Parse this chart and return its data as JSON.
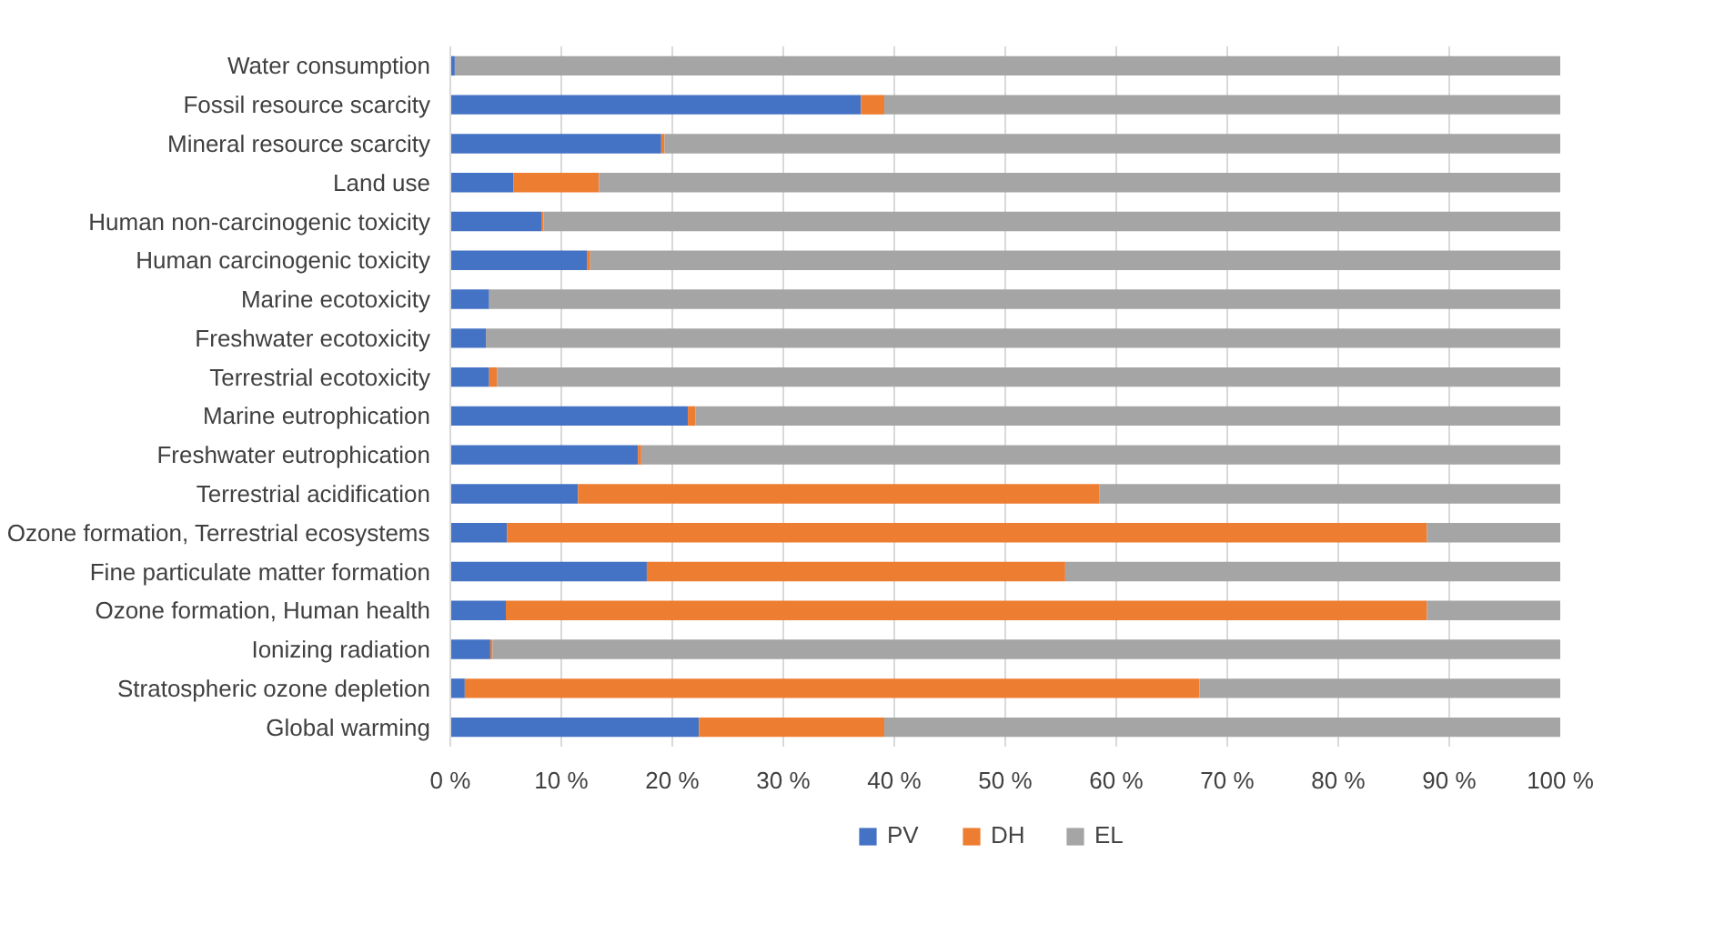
{
  "chart_data": {
    "type": "bar",
    "orientation": "horizontal",
    "stacked": true,
    "categories": [
      "Water consumption",
      "Fossil resource scarcity",
      "Mineral resource scarcity",
      "Land use",
      "Human non-carcinogenic toxicity",
      "Human carcinogenic toxicity",
      "Marine ecotoxicity",
      "Freshwater ecotoxicity",
      "Terrestrial ecotoxicity",
      "Marine eutrophication",
      "Freshwater eutrophication",
      "Terrestrial acidification",
      "Ozone formation, Terrestrial ecosystems",
      "Fine particulate matter formation",
      "Ozone formation, Human health",
      "Ionizing radiation",
      "Stratospheric ozone depletion",
      "Global warming"
    ],
    "series": [
      {
        "name": "PV",
        "color": "#4472c4",
        "values": [
          0.4,
          37.0,
          19.0,
          5.7,
          8.2,
          12.3,
          3.5,
          3.2,
          3.5,
          21.4,
          16.9,
          11.5,
          5.1,
          17.7,
          5.0,
          3.6,
          1.3,
          22.4
        ]
      },
      {
        "name": "DH",
        "color": "#ed7d31",
        "values": [
          0,
          2.1,
          0.3,
          7.7,
          0.2,
          0.3,
          0,
          0,
          0.7,
          0.7,
          0.3,
          47.0,
          82.9,
          37.7,
          83.0,
          0.2,
          66.2,
          16.7
        ]
      },
      {
        "name": "EL",
        "color": "#a5a5a5",
        "values": [
          99.6,
          60.9,
          80.7,
          86.6,
          91.6,
          87.4,
          96.5,
          96.8,
          95.8,
          77.9,
          82.8,
          41.5,
          12.0,
          44.6,
          12.0,
          96.2,
          32.5,
          60.9
        ]
      }
    ],
    "xlim": [
      0,
      100
    ],
    "xticks": [
      {
        "value": 0,
        "label": "0 %"
      },
      {
        "value": 10,
        "label": "10 %"
      },
      {
        "value": 20,
        "label": "20 %"
      },
      {
        "value": 30,
        "label": "30 %"
      },
      {
        "value": 40,
        "label": "40 %"
      },
      {
        "value": 50,
        "label": "50 %"
      },
      {
        "value": 60,
        "label": "60 %"
      },
      {
        "value": 70,
        "label": "70 %"
      },
      {
        "value": 80,
        "label": "80 %"
      },
      {
        "value": 90,
        "label": "90 %"
      },
      {
        "value": 100,
        "label": "100 %"
      }
    ],
    "grid": "x",
    "legend": "bottom"
  }
}
